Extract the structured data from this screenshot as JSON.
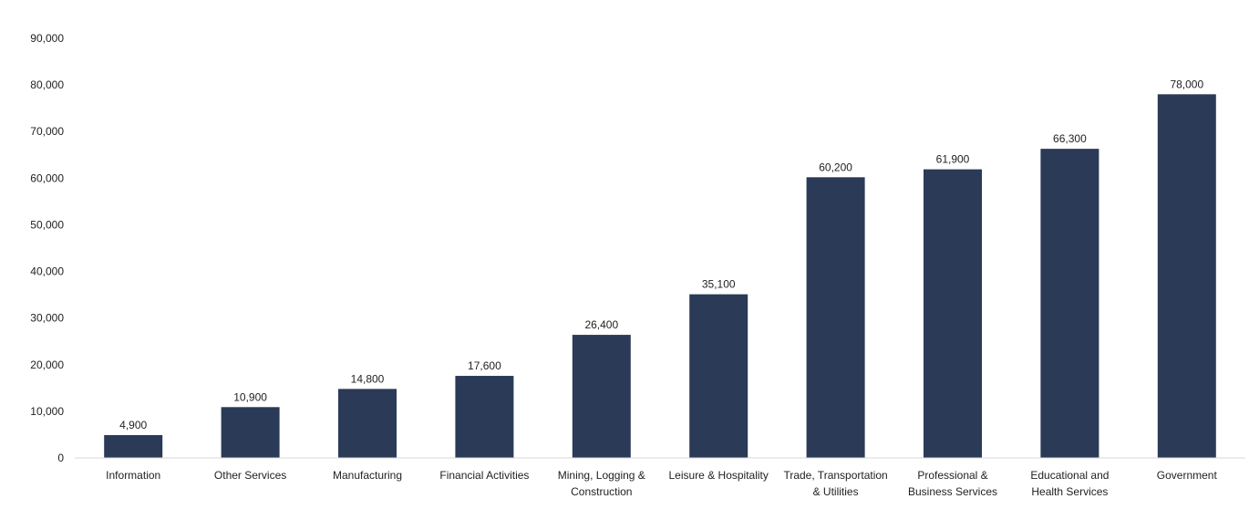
{
  "chart_data": {
    "type": "bar",
    "title": "",
    "xlabel": "",
    "ylabel": "",
    "categories": [
      [
        "Information"
      ],
      [
        "Other Services"
      ],
      [
        "Manufacturing"
      ],
      [
        "Financial Activities"
      ],
      [
        "Mining, Logging &",
        "Construction"
      ],
      [
        "Leisure & Hospitality"
      ],
      [
        "Trade, Transportation",
        "& Utilities"
      ],
      [
        "Professional &",
        "Business Services"
      ],
      [
        "Educational and",
        "Health Services"
      ],
      [
        "Government"
      ]
    ],
    "values": [
      4900,
      10900,
      14800,
      17600,
      26400,
      35100,
      60200,
      61900,
      66300,
      78000
    ],
    "data_labels": [
      "4,900",
      "10,900",
      "14,800",
      "17,600",
      "26,400",
      "35,100",
      "60,200",
      "61,900",
      "66,300",
      "78,000"
    ],
    "ylim": [
      0,
      90000
    ],
    "yticks": [
      0,
      10000,
      20000,
      30000,
      40000,
      50000,
      60000,
      70000,
      80000,
      90000
    ],
    "ytick_labels": [
      "0",
      "10,000",
      "20,000",
      "30,000",
      "40,000",
      "50,000",
      "60,000",
      "70,000",
      "80,000",
      "90,000"
    ],
    "grid": false,
    "bar_color": "#2b3a56"
  }
}
